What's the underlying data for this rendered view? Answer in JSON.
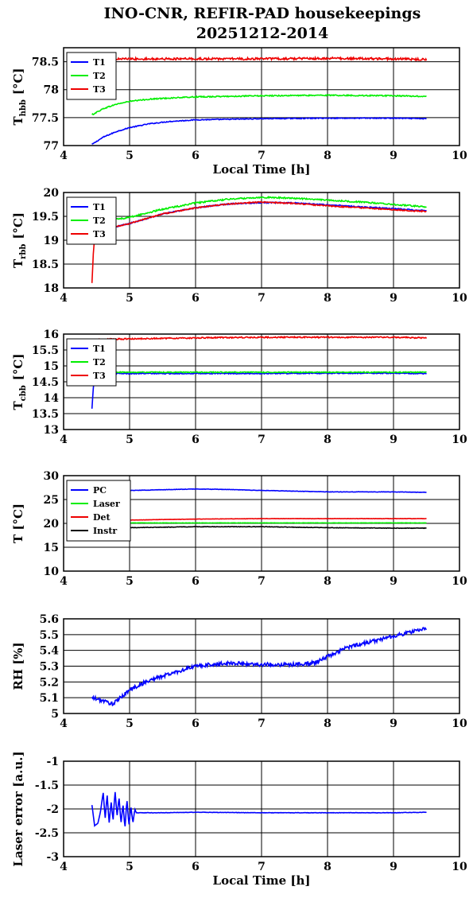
{
  "figure": {
    "title_line1": "INO-CNR, REFIR-PAD housekeepings",
    "title_line2": "20251212-2014"
  },
  "chart_data": [
    {
      "type": "line",
      "ylabel": "T",
      "ylabel_sub": "hbb",
      "ylabel_unit": "[°C]",
      "xlabel": "Local Time [h]",
      "xlim": [
        4,
        10
      ],
      "ylim": [
        77,
        78.75
      ],
      "yticks": [
        77,
        77.5,
        78,
        78.5
      ],
      "ytick_labels": [
        "77",
        "77.5",
        "78",
        "78.5"
      ],
      "xticks": [
        4,
        5,
        6,
        7,
        8,
        9,
        10
      ],
      "xtick_labels": [
        "4",
        "5",
        "6",
        "7",
        "8",
        "9",
        "10"
      ],
      "grid": true,
      "legend": "top-left",
      "series": [
        {
          "name": "T1",
          "color": "#0000ff",
          "noise": 0.008,
          "x": [
            4.43,
            4.6,
            4.8,
            5.0,
            5.3,
            5.6,
            6.0,
            6.5,
            7.0,
            8.0,
            9.0,
            9.5
          ],
          "y": [
            77.02,
            77.15,
            77.25,
            77.32,
            77.39,
            77.43,
            77.46,
            77.47,
            77.48,
            77.49,
            77.49,
            77.48
          ]
        },
        {
          "name": "T2",
          "color": "#00ee00",
          "noise": 0.01,
          "x": [
            4.43,
            4.6,
            4.8,
            5.0,
            5.3,
            5.6,
            6.0,
            6.5,
            7.0,
            8.0,
            9.0,
            9.5
          ],
          "y": [
            77.55,
            77.66,
            77.74,
            77.79,
            77.83,
            77.85,
            77.87,
            77.88,
            77.89,
            77.9,
            77.89,
            77.88
          ]
        },
        {
          "name": "T3",
          "color": "#ee0000",
          "noise": 0.02,
          "x": [
            4.43,
            5.0,
            6.0,
            7.0,
            8.0,
            9.0,
            9.5
          ],
          "y": [
            78.55,
            78.55,
            78.55,
            78.55,
            78.56,
            78.55,
            78.54
          ]
        }
      ]
    },
    {
      "type": "line",
      "ylabel": "T",
      "ylabel_sub": "rbb",
      "ylabel_unit": "[°C]",
      "xlim": [
        4,
        10
      ],
      "ylim": [
        18,
        20
      ],
      "yticks": [
        18,
        18.5,
        19,
        19.5,
        20
      ],
      "ytick_labels": [
        "18",
        "18.5",
        "19",
        "19.5",
        "20"
      ],
      "xticks": [
        4,
        5,
        6,
        7,
        8,
        9,
        10
      ],
      "xtick_labels": [
        "4",
        "5",
        "6",
        "7",
        "8",
        "9",
        "10"
      ],
      "grid": true,
      "legend": "top-left",
      "series": [
        {
          "name": "T1",
          "color": "#0000ff",
          "noise": 0.012,
          "x": [
            4.48,
            4.6,
            5.0,
            5.5,
            6.0,
            6.5,
            7.0,
            7.5,
            8.0,
            8.5,
            9.0,
            9.5
          ],
          "y": [
            19.2,
            19.22,
            19.35,
            19.55,
            19.68,
            19.76,
            19.79,
            19.78,
            19.74,
            19.7,
            19.66,
            19.62
          ]
        },
        {
          "name": "T2",
          "color": "#00ee00",
          "noise": 0.015,
          "x": [
            4.48,
            4.6,
            5.0,
            5.5,
            6.0,
            6.5,
            7.0,
            7.5,
            8.0,
            8.5,
            9.0,
            9.5
          ],
          "y": [
            19.38,
            19.4,
            19.48,
            19.65,
            19.78,
            19.86,
            19.9,
            19.88,
            19.84,
            19.8,
            19.75,
            19.7
          ]
        },
        {
          "name": "T3",
          "color": "#ee0000",
          "noise": 0.012,
          "x": [
            4.43,
            4.45,
            4.47,
            4.48,
            4.6,
            5.0,
            5.5,
            6.0,
            6.5,
            7.0,
            7.5,
            8.0,
            8.5,
            9.0,
            9.5
          ],
          "y": [
            18.1,
            18.7,
            19.05,
            19.15,
            19.22,
            19.35,
            19.55,
            19.68,
            19.76,
            19.8,
            19.77,
            19.72,
            19.68,
            19.64,
            19.6
          ]
        }
      ]
    },
    {
      "type": "line",
      "ylabel": "T",
      "ylabel_sub": "cbb",
      "ylabel_unit": "[°C]",
      "xlim": [
        4,
        10
      ],
      "ylim": [
        13,
        16
      ],
      "yticks": [
        13,
        13.5,
        14,
        14.5,
        15,
        15.5,
        16
      ],
      "ytick_labels": [
        "13",
        "13.5",
        "14",
        "14.5",
        "15",
        "15.5",
        "16"
      ],
      "xticks": [
        4,
        5,
        6,
        7,
        8,
        9,
        10
      ],
      "xtick_labels": [
        "4",
        "5",
        "6",
        "7",
        "8",
        "9",
        "10"
      ],
      "grid": true,
      "legend": "top-left",
      "series": [
        {
          "name": "T1",
          "color": "#0000ff",
          "noise": 0.015,
          "x": [
            4.43,
            4.45,
            4.47,
            4.5,
            5.0,
            6.0,
            7.0,
            8.0,
            9.0,
            9.5
          ],
          "y": [
            13.65,
            14.3,
            14.7,
            14.76,
            14.76,
            14.76,
            14.76,
            14.77,
            14.77,
            14.76
          ]
        },
        {
          "name": "T2",
          "color": "#00ee00",
          "noise": 0.015,
          "x": [
            4.5,
            5.0,
            6.0,
            7.0,
            8.0,
            9.0,
            9.5
          ],
          "y": [
            14.8,
            14.8,
            14.8,
            14.8,
            14.8,
            14.8,
            14.8
          ]
        },
        {
          "name": "T3",
          "color": "#ee0000",
          "noise": 0.02,
          "x": [
            4.5,
            5.0,
            6.0,
            7.0,
            8.0,
            9.0,
            9.5
          ],
          "y": [
            15.83,
            15.85,
            15.88,
            15.9,
            15.9,
            15.9,
            15.88
          ]
        }
      ]
    },
    {
      "type": "line",
      "ylabel": "T [°C]",
      "xlim": [
        4,
        10
      ],
      "ylim": [
        10,
        30
      ],
      "yticks": [
        10,
        15,
        20,
        25,
        30
      ],
      "ytick_labels": [
        "10",
        "15",
        "20",
        "25",
        "30"
      ],
      "xticks": [
        4,
        5,
        6,
        7,
        8,
        9,
        10
      ],
      "xtick_labels": [
        "4",
        "5",
        "6",
        "7",
        "8",
        "9",
        "10"
      ],
      "grid": true,
      "legend": "top-left",
      "series": [
        {
          "name": "PC",
          "color": "#0000ff",
          "noise": 0.04,
          "x": [
            4.43,
            5.0,
            6.0,
            6.5,
            7.0,
            8.0,
            9.0,
            9.5
          ],
          "y": [
            26.8,
            26.9,
            27.2,
            27.1,
            26.9,
            26.6,
            26.6,
            26.5
          ]
        },
        {
          "name": "Laser",
          "color": "#00ee00",
          "noise": 0.03,
          "x": [
            4.43,
            5.0,
            6.0,
            7.0,
            8.0,
            9.0,
            9.5
          ],
          "y": [
            20.0,
            20.1,
            20.1,
            20.1,
            20.1,
            20.1,
            20.1
          ]
        },
        {
          "name": "Det",
          "color": "#ee0000",
          "noise": 0.03,
          "x": [
            4.43,
            5.0,
            6.0,
            7.0,
            8.0,
            9.0,
            9.5
          ],
          "y": [
            20.6,
            20.7,
            20.9,
            21.0,
            21.0,
            21.0,
            21.0
          ]
        },
        {
          "name": "Instr",
          "color": "#000000",
          "noise": 0.05,
          "x": [
            4.43,
            5.0,
            6.0,
            7.0,
            8.0,
            9.0,
            9.5
          ],
          "y": [
            19.0,
            19.1,
            19.3,
            19.3,
            19.1,
            19.0,
            19.0
          ]
        }
      ]
    },
    {
      "type": "line",
      "ylabel": "RH [%]",
      "xlim": [
        4,
        10
      ],
      "ylim": [
        5,
        5.6
      ],
      "yticks": [
        5,
        5.1,
        5.2,
        5.3,
        5.4,
        5.5,
        5.6
      ],
      "ytick_labels": [
        "5",
        "5.1",
        "5.2",
        "5.3",
        "5.4",
        "5.5",
        "5.6"
      ],
      "xticks": [
        4,
        5,
        6,
        7,
        8,
        9,
        10
      ],
      "xtick_labels": [
        "4",
        "5",
        "6",
        "7",
        "8",
        "9",
        "10"
      ],
      "grid": true,
      "series": [
        {
          "name": "",
          "color": "#0000ff",
          "noise": 0.012,
          "x": [
            4.43,
            4.6,
            4.75,
            5.0,
            5.3,
            5.6,
            6.0,
            6.5,
            7.0,
            7.5,
            7.8,
            8.0,
            8.3,
            8.6,
            9.0,
            9.5
          ],
          "y": [
            5.1,
            5.08,
            5.06,
            5.15,
            5.21,
            5.25,
            5.3,
            5.32,
            5.31,
            5.31,
            5.32,
            5.36,
            5.42,
            5.45,
            5.49,
            5.54
          ]
        }
      ]
    },
    {
      "type": "line",
      "ylabel": "Laser error [a.u.]",
      "xlabel": "Local Time [h]",
      "xlim": [
        4,
        10
      ],
      "ylim": [
        -3,
        -1
      ],
      "yticks": [
        -3,
        -2.5,
        -2,
        -1.5,
        -1
      ],
      "ytick_labels": [
        "-3",
        "-2.5",
        "-2",
        "-1.5",
        "-1"
      ],
      "xticks": [
        4,
        5,
        6,
        7,
        8,
        9,
        10
      ],
      "xtick_labels": [
        "4",
        "5",
        "6",
        "7",
        "8",
        "9",
        "10"
      ],
      "grid": true,
      "series": [
        {
          "name": "",
          "color": "#0000ff",
          "noise": 0.004,
          "x": [
            4.43,
            4.47,
            4.52,
            4.56,
            4.6,
            4.63,
            4.66,
            4.69,
            4.72,
            4.75,
            4.78,
            4.81,
            4.84,
            4.87,
            4.9,
            4.93,
            4.96,
            4.99,
            5.02,
            5.05,
            5.08,
            5.1,
            5.5,
            6.0,
            7.0,
            8.0,
            9.0,
            9.5
          ],
          "y": [
            -1.92,
            -2.35,
            -2.3,
            -2.05,
            -1.65,
            -2.2,
            -1.7,
            -2.3,
            -1.85,
            -2.25,
            -1.62,
            -2.15,
            -1.75,
            -2.3,
            -1.9,
            -2.4,
            -1.8,
            -2.35,
            -1.95,
            -2.3,
            -2.0,
            -2.08,
            -2.08,
            -2.07,
            -2.08,
            -2.08,
            -2.08,
            -2.07
          ]
        }
      ]
    }
  ]
}
